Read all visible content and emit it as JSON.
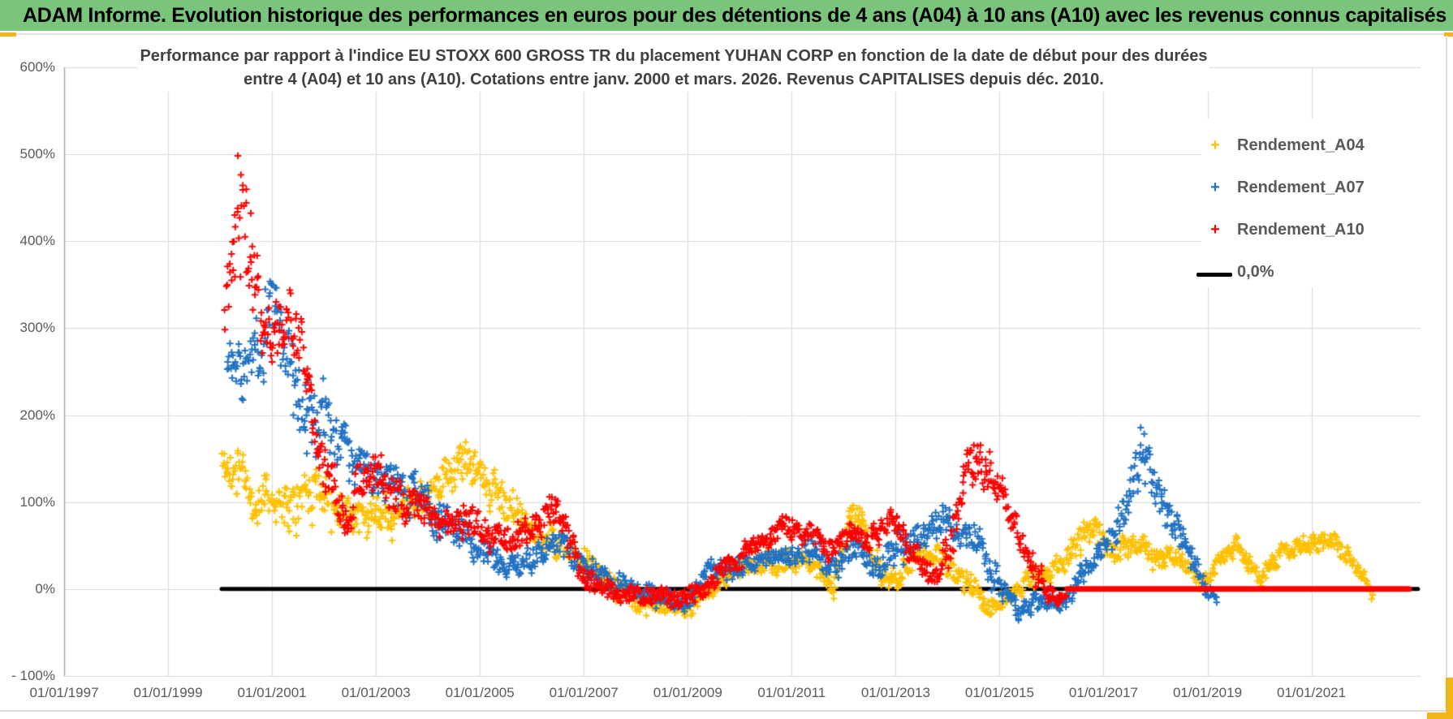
{
  "header": {
    "title": "ADAM Informe. Evolution historique des performances en euros pour des détentions de 4 ans (A04) à 10 ans (A10) avec les revenus connus capitalisés"
  },
  "theme": {
    "header_bg": "#7BC47B",
    "accent_gold": "#F0B519",
    "title_color": "#404040",
    "tick_color": "#595959",
    "grid_color": "#D9D9D9",
    "axis_color": "#A6A6A6"
  },
  "chart_data": {
    "type": "scatter",
    "title_line1": "Performance par rapport à l'indice EU STOXX 600 GROSS TR  du placement YUHAN CORP en fonction de la date de début pour des durées",
    "title_line2": "entre 4 (A04) et 10 ans (A10). Cotations entre janv. 2000 et mars. 2026. Revenus CAPITALISES depuis déc. 2010.",
    "x_axis": {
      "min": 1997.0,
      "max": 2023.1,
      "ticks": [
        {
          "label": "01/01/1997",
          "year": 1997
        },
        {
          "label": "01/01/1999",
          "year": 1999
        },
        {
          "label": "01/01/2001",
          "year": 2001
        },
        {
          "label": "01/01/2003",
          "year": 2003
        },
        {
          "label": "01/01/2005",
          "year": 2005
        },
        {
          "label": "01/01/2007",
          "year": 2007
        },
        {
          "label": "01/01/2009",
          "year": 2009
        },
        {
          "label": "01/01/2011",
          "year": 2011
        },
        {
          "label": "01/01/2013",
          "year": 2013
        },
        {
          "label": "01/01/2015",
          "year": 2015
        },
        {
          "label": "01/01/2017",
          "year": 2017
        },
        {
          "label": "01/01/2019",
          "year": 2019
        },
        {
          "label": "01/01/2021",
          "year": 2021
        }
      ]
    },
    "y_axis": {
      "min": -100,
      "max": 600,
      "unit": "%",
      "ticks": [
        {
          "label": "600%",
          "value": 600
        },
        {
          "label": "500%",
          "value": 500
        },
        {
          "label": "400%",
          "value": 400
        },
        {
          "label": "300%",
          "value": 300
        },
        {
          "label": "200%",
          "value": 200
        },
        {
          "label": "100%",
          "value": 100
        },
        {
          "label": "0%",
          "value": 0
        },
        {
          "label": "- 100%",
          "value": -100
        }
      ]
    },
    "zero_line": {
      "label": "0,0%",
      "color": "#000000",
      "value": 0,
      "start": 2000.03,
      "end": 2023.05,
      "width": 5
    },
    "series": [
      {
        "name": "Rendement_A04",
        "color": "#FFC000",
        "marker": "plus",
        "seed": 11,
        "band_format": [
          "decimal_year",
          "mid_percent",
          "half_spread_percent"
        ],
        "band": [
          [
            2000.05,
            140,
            40
          ],
          [
            2000.4,
            130,
            40
          ],
          [
            2000.65,
            85,
            35
          ],
          [
            2000.9,
            120,
            35
          ],
          [
            2001.15,
            95,
            45
          ],
          [
            2001.5,
            115,
            40
          ],
          [
            2001.9,
            110,
            40
          ],
          [
            2002.3,
            100,
            35
          ],
          [
            2002.9,
            85,
            30
          ],
          [
            2003.5,
            90,
            28
          ],
          [
            2004.0,
            112,
            30
          ],
          [
            2004.7,
            142,
            28
          ],
          [
            2005.0,
            135,
            30
          ],
          [
            2005.4,
            100,
            30
          ],
          [
            2005.9,
            72,
            25
          ],
          [
            2006.4,
            55,
            22
          ],
          [
            2006.7,
            48,
            22
          ],
          [
            2007.1,
            25,
            20
          ],
          [
            2007.6,
            2,
            18
          ],
          [
            2008.1,
            -15,
            18
          ],
          [
            2008.7,
            -20,
            15
          ],
          [
            2009.1,
            -22,
            15
          ],
          [
            2009.5,
            2,
            18
          ],
          [
            2010.0,
            18,
            18
          ],
          [
            2010.6,
            32,
            18
          ],
          [
            2011.1,
            35,
            18
          ],
          [
            2011.5,
            22,
            15
          ],
          [
            2011.8,
            -4,
            14
          ],
          [
            2012.15,
            92,
            24
          ],
          [
            2012.5,
            58,
            22
          ],
          [
            2012.8,
            8,
            18
          ],
          [
            2013.1,
            15,
            18
          ],
          [
            2013.5,
            40,
            18
          ],
          [
            2013.9,
            32,
            18
          ],
          [
            2014.3,
            18,
            18
          ],
          [
            2014.8,
            -24,
            14
          ],
          [
            2015.2,
            -14,
            14
          ],
          [
            2015.6,
            15,
            18
          ],
          [
            2016.0,
            22,
            18
          ],
          [
            2016.5,
            45,
            22
          ],
          [
            2016.8,
            70,
            24
          ],
          [
            2017.2,
            45,
            20
          ],
          [
            2017.6,
            50,
            18
          ],
          [
            2018.0,
            35,
            18
          ],
          [
            2018.45,
            42,
            15
          ],
          [
            2018.9,
            -2,
            15
          ],
          [
            2019.2,
            28,
            14
          ],
          [
            2019.55,
            52,
            16
          ],
          [
            2020.0,
            8,
            16
          ],
          [
            2020.5,
            50,
            16
          ],
          [
            2021.0,
            48,
            15
          ],
          [
            2021.35,
            58,
            16
          ],
          [
            2021.8,
            30,
            14
          ],
          [
            2022.05,
            12,
            10
          ],
          [
            2022.2,
            -8,
            8
          ]
        ]
      },
      {
        "name": "Rendement_A07",
        "color": "#2272C3",
        "marker": "plus",
        "seed": 22,
        "band_format": [
          "decimal_year",
          "mid_percent",
          "half_spread_percent"
        ],
        "band": [
          [
            2000.15,
            265,
            60
          ],
          [
            2000.5,
            258,
            55
          ],
          [
            2000.8,
            272,
            52
          ],
          [
            2001.05,
            345,
            80
          ],
          [
            2001.3,
            250,
            60
          ],
          [
            2001.6,
            188,
            45
          ],
          [
            2001.95,
            200,
            50
          ],
          [
            2002.2,
            185,
            50
          ],
          [
            2002.5,
            148,
            40
          ],
          [
            2002.9,
            125,
            35
          ],
          [
            2003.3,
            118,
            32
          ],
          [
            2003.7,
            112,
            32
          ],
          [
            2004.1,
            88,
            30
          ],
          [
            2004.6,
            68,
            28
          ],
          [
            2005.0,
            45,
            25
          ],
          [
            2005.5,
            24,
            20
          ],
          [
            2006.0,
            30,
            20
          ],
          [
            2006.5,
            55,
            20
          ],
          [
            2007.0,
            25,
            16
          ],
          [
            2007.5,
            10,
            15
          ],
          [
            2008.0,
            0,
            15
          ],
          [
            2008.5,
            -10,
            15
          ],
          [
            2009.0,
            -14,
            15
          ],
          [
            2009.4,
            26,
            15
          ],
          [
            2009.9,
            25,
            15
          ],
          [
            2010.4,
            32,
            15
          ],
          [
            2010.9,
            40,
            16
          ],
          [
            2011.3,
            46,
            20
          ],
          [
            2011.8,
            20,
            20
          ],
          [
            2012.2,
            55,
            20
          ],
          [
            2012.6,
            25,
            20
          ],
          [
            2013.0,
            45,
            22
          ],
          [
            2013.5,
            60,
            24
          ],
          [
            2013.85,
            80,
            28
          ],
          [
            2014.2,
            62,
            25
          ],
          [
            2014.6,
            50,
            25
          ],
          [
            2015.0,
            8,
            22
          ],
          [
            2015.35,
            -26,
            14
          ],
          [
            2015.7,
            -10,
            14
          ],
          [
            2016.1,
            -20,
            14
          ],
          [
            2016.5,
            8,
            15
          ],
          [
            2017.0,
            45,
            20
          ],
          [
            2017.4,
            95,
            30
          ],
          [
            2017.7,
            160,
            45
          ],
          [
            2018.0,
            120,
            30
          ],
          [
            2018.3,
            80,
            25
          ],
          [
            2018.6,
            48,
            20
          ],
          [
            2019.0,
            -2,
            15
          ],
          [
            2019.2,
            -12,
            8
          ]
        ]
      },
      {
        "name": "Rendement_A10",
        "color": "#FF0000",
        "marker": "plus",
        "seed": 33,
        "band_format": [
          "decimal_year",
          "mid_percent",
          "half_spread_percent"
        ],
        "band": [
          [
            2000.1,
            300,
            70
          ],
          [
            2000.3,
            430,
            95
          ],
          [
            2000.55,
            415,
            85
          ],
          [
            2000.8,
            300,
            60
          ],
          [
            2001.1,
            290,
            50
          ],
          [
            2001.35,
            308,
            40
          ],
          [
            2001.6,
            252,
            45
          ],
          [
            2001.9,
            165,
            45
          ],
          [
            2002.2,
            112,
            40
          ],
          [
            2002.5,
            92,
            30
          ],
          [
            2002.9,
            138,
            32
          ],
          [
            2003.2,
            110,
            30
          ],
          [
            2003.6,
            95,
            28
          ],
          [
            2004.0,
            85,
            25
          ],
          [
            2004.4,
            70,
            25
          ],
          [
            2004.8,
            85,
            25
          ],
          [
            2005.2,
            60,
            25
          ],
          [
            2005.6,
            52,
            24
          ],
          [
            2006.0,
            70,
            24
          ],
          [
            2006.5,
            95,
            24
          ],
          [
            2006.9,
            30,
            20
          ],
          [
            2007.3,
            5,
            15
          ],
          [
            2007.8,
            -10,
            15
          ],
          [
            2008.3,
            -5,
            15
          ],
          [
            2008.8,
            -15,
            15
          ],
          [
            2009.3,
            0,
            15
          ],
          [
            2009.8,
            30,
            15
          ],
          [
            2010.3,
            55,
            18
          ],
          [
            2010.8,
            70,
            18
          ],
          [
            2011.3,
            68,
            18
          ],
          [
            2011.7,
            45,
            18
          ],
          [
            2012.1,
            60,
            18
          ],
          [
            2012.5,
            55,
            18
          ],
          [
            2012.9,
            80,
            20
          ],
          [
            2013.3,
            45,
            18
          ],
          [
            2013.8,
            15,
            18
          ],
          [
            2014.1,
            62,
            30
          ],
          [
            2014.4,
            150,
            42
          ],
          [
            2014.7,
            135,
            38
          ],
          [
            2015.0,
            115,
            32
          ],
          [
            2015.3,
            68,
            28
          ],
          [
            2015.6,
            30,
            22
          ],
          [
            2015.9,
            -2,
            18
          ],
          [
            2016.15,
            -15,
            10
          ],
          [
            2016.3,
            -2,
            4
          ]
        ],
        "flat_zero": {
          "start": 2016.3,
          "end": 2022.88,
          "value": 0,
          "width": 7
        }
      }
    ],
    "extremes": {
      "max_point_percent": 527,
      "max_point_year": 2000.3,
      "blue_peak_percent": 430,
      "blue_2017_peak_percent": 205,
      "red_2014_peak_percent": 190
    }
  }
}
